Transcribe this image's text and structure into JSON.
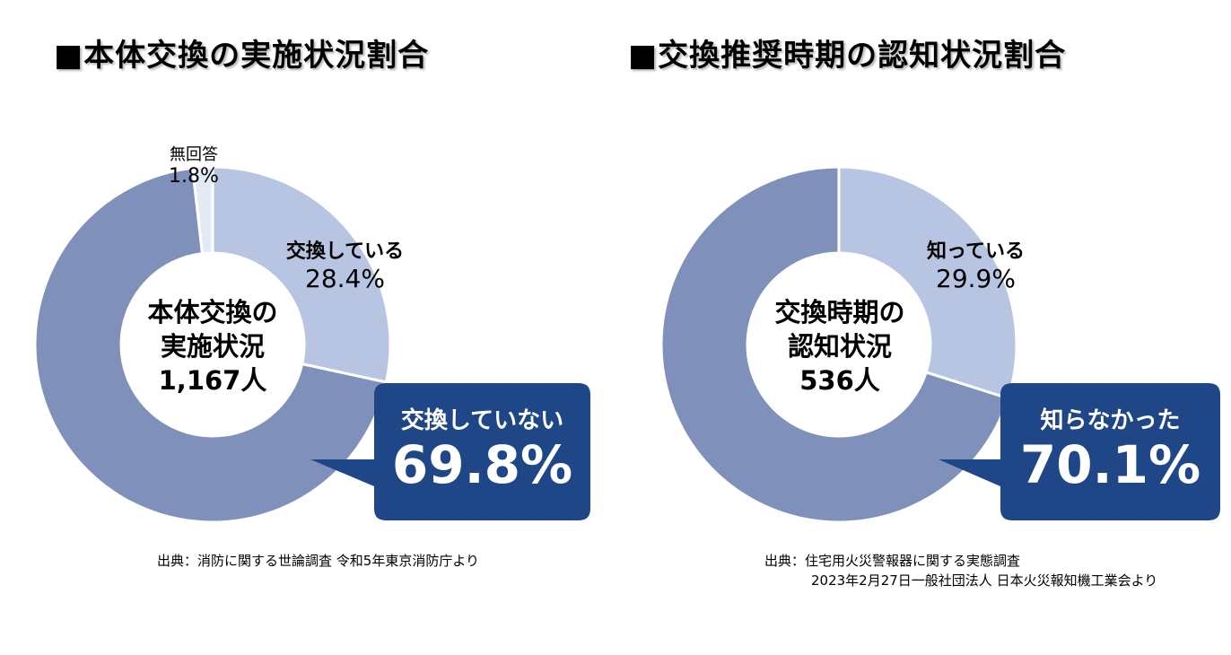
{
  "colors": {
    "dark_slice": "#7f91bb",
    "light_slice": "#b7c5e2",
    "pale_slice": "#e3e9f5",
    "callout": "#1f4687"
  },
  "charts": [
    {
      "title": "■本体交換の実施状況割合",
      "center_lines": [
        "本体交換の",
        "実施状況",
        "1,167人"
      ],
      "source_lines": [
        "出典：消防に関する世論調査 令和5年東京消防庁より"
      ]
    },
    {
      "title": "■交換推奨時期の認知状況割合",
      "center_lines": [
        "交換時期の",
        "認知状況",
        "536人"
      ],
      "source_lines": [
        "出典：住宅用火災警報器に関する実態調査",
        "2023年2月27日一般社団法人 日本火災報知機工業会より"
      ]
    }
  ],
  "chart_data": [
    {
      "type": "pie",
      "title": "■本体交換の実施状況割合",
      "categories": [
        "交換している",
        "交換していない",
        "無回答"
      ],
      "values": [
        28.4,
        69.8,
        1.8
      ],
      "value_labels": [
        "28.4%",
        "69.8%",
        "1.8%"
      ],
      "donut": true,
      "start": "top",
      "direction": "clockwise"
    },
    {
      "type": "pie",
      "title": "■交換推奨時期の認知状況割合",
      "categories": [
        "知っている",
        "知らなかった"
      ],
      "values": [
        29.9,
        70.1
      ],
      "value_labels": [
        "29.9%",
        "70.1%"
      ],
      "donut": true,
      "start": "top",
      "direction": "clockwise"
    }
  ]
}
